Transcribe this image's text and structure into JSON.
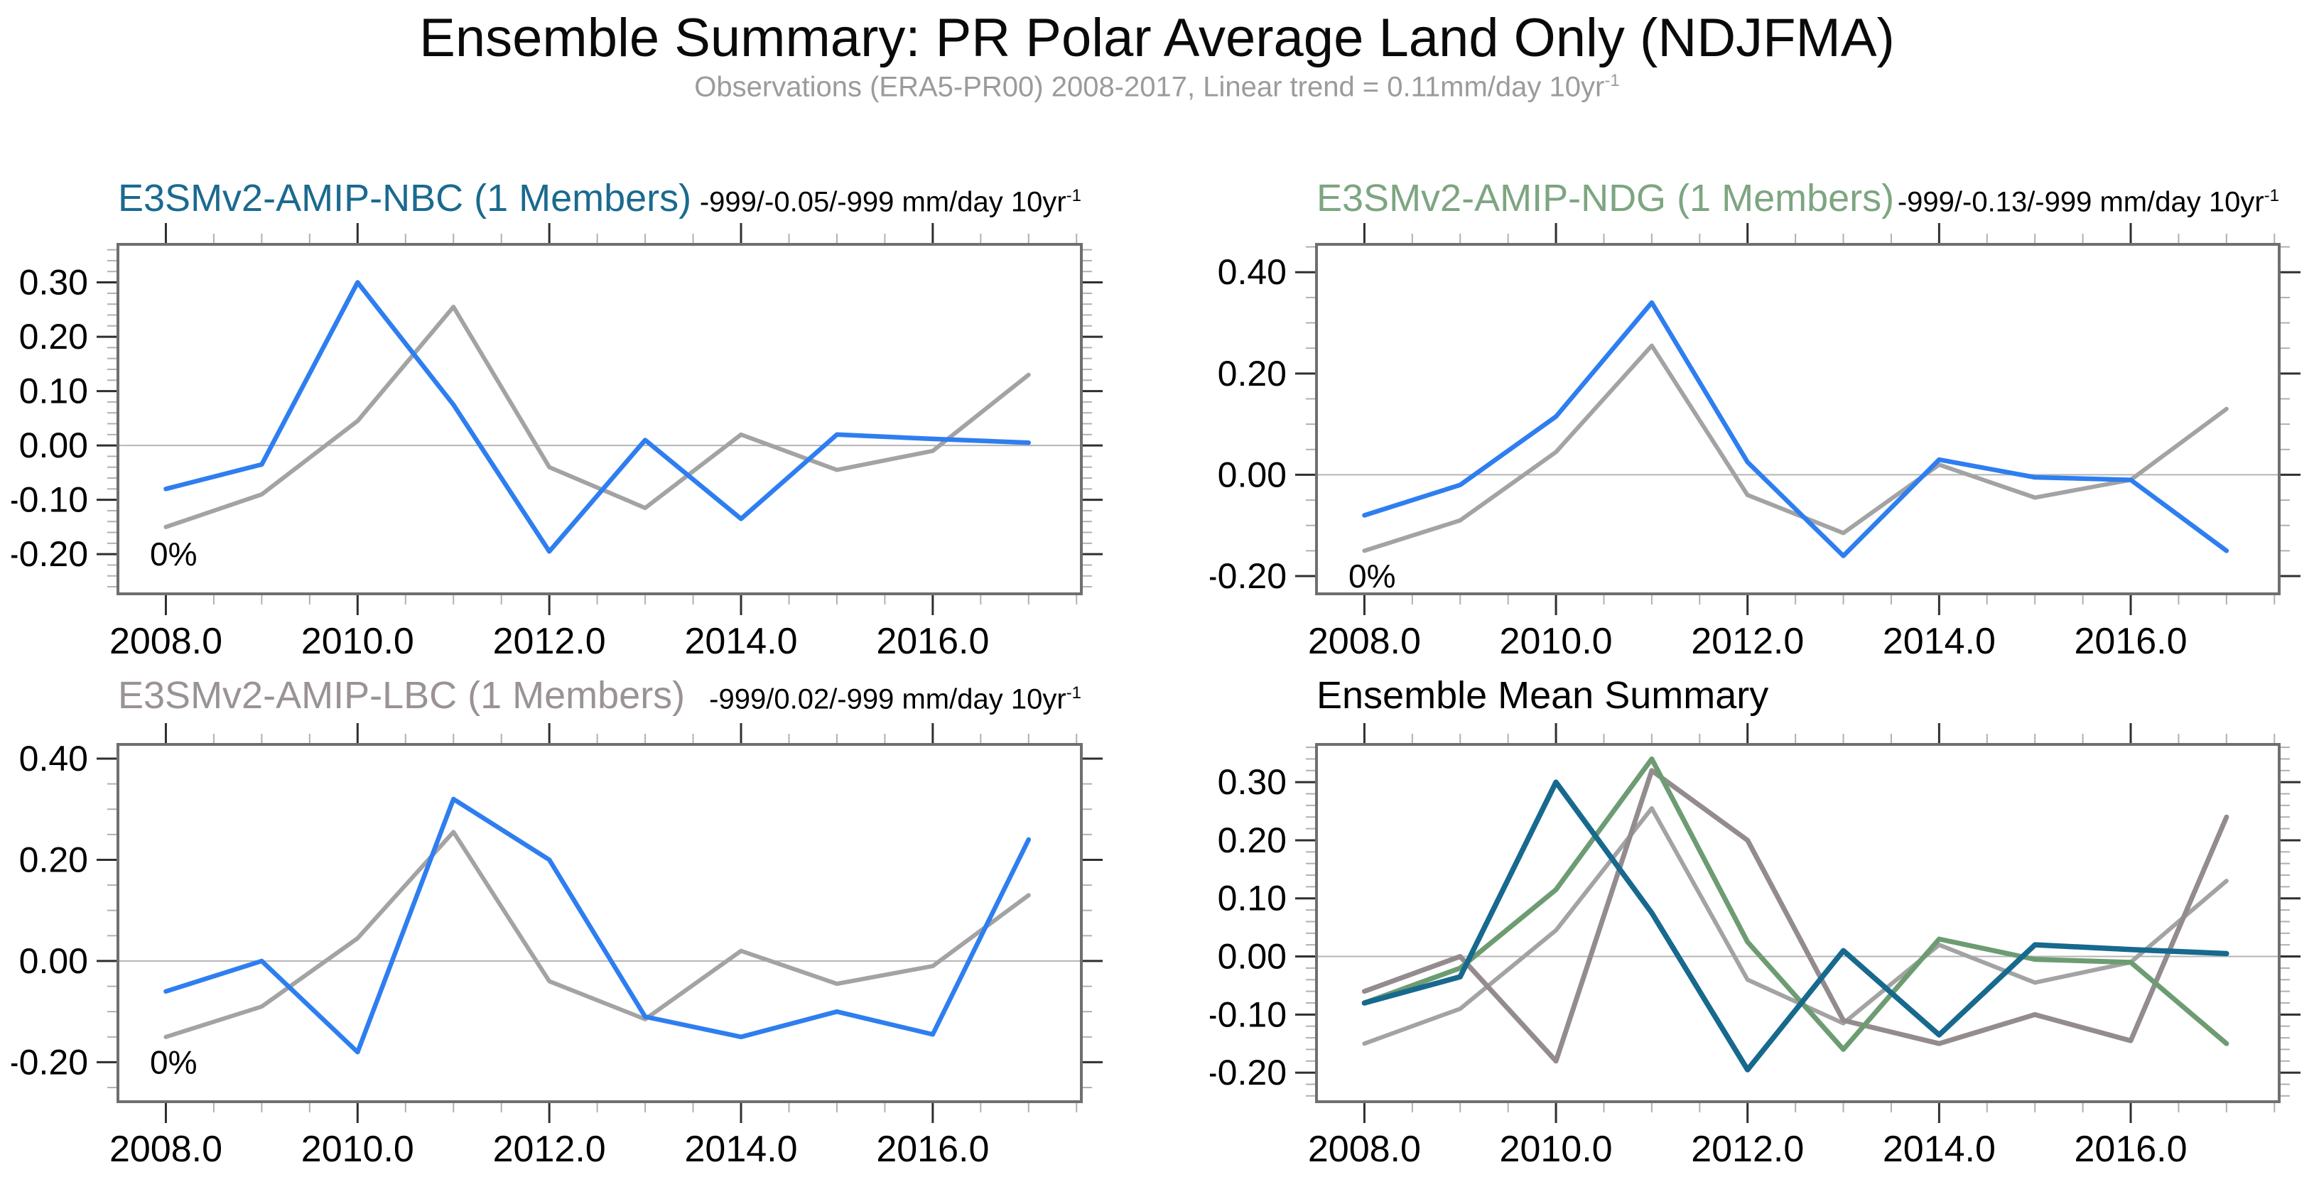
{
  "title": "Ensemble Summary: PR Polar Average Land Only (NDJFMA)",
  "subtitle": {
    "text": "Observations (ERA5-PR00) 2008-2017, Linear trend = 0.11mm/day 10yr",
    "sup": "-1"
  },
  "colors": {
    "model_blue": "#2e7ef0",
    "obs_gray": "#a3a3a3",
    "nbc_teal": "#17698e",
    "ndg_green": "#6d9c72",
    "lbc_mauve": "#948b8f",
    "frame": "#6f6f6f",
    "zero_line": "#b5b5b5",
    "major_tick": "#2f2f2f",
    "minor_tick": "#b0b0b0",
    "subtitle_gray": "#9b9b9b"
  },
  "x_years": [
    2008,
    2009,
    2010,
    2011,
    2012,
    2013,
    2014,
    2015,
    2016,
    2017
  ],
  "chart_data": [
    {
      "type": "line",
      "id": "nbc",
      "title": "E3SMv2-AMIP-NBC (1 Members)",
      "title_color": "#1a6a8f",
      "trend": "-999/-0.05/-999 mm/day 10yr",
      "trend_sup": "-1",
      "note": "0%",
      "xlim": [
        2007.5,
        2017.55
      ],
      "ylim": [
        -0.273,
        0.37
      ],
      "x_major": [
        2008,
        2010,
        2012,
        2014,
        2016
      ],
      "x_minor_step": 0.5,
      "y_major": [
        0.3,
        0.2,
        0.1,
        0.0,
        -0.1,
        -0.2
      ],
      "y_minor_step": 0.02,
      "series": [
        {
          "name": "ERA5-PR00 Observations",
          "color": "#a3a3a3",
          "width": 6,
          "values": [
            -0.15,
            -0.09,
            0.045,
            0.255,
            -0.04,
            -0.115,
            0.02,
            -0.045,
            -0.01,
            0.13
          ]
        },
        {
          "name": "E3SMv2-AMIP-NBC",
          "color": "#2e7ef0",
          "width": 6.5,
          "values": [
            -0.08,
            -0.035,
            0.3,
            0.075,
            -0.195,
            0.01,
            -0.135,
            0.02,
            0.012,
            0.005
          ]
        }
      ]
    },
    {
      "type": "line",
      "id": "ndg",
      "title": "E3SMv2-AMIP-NDG (1 Members)",
      "title_color": "#7da581",
      "trend": "-999/-0.13/-999 mm/day 10yr",
      "trend_sup": "-1",
      "note": "0%",
      "xlim": [
        2007.5,
        2017.55
      ],
      "ylim": [
        -0.235,
        0.455
      ],
      "x_major": [
        2008,
        2010,
        2012,
        2014,
        2016
      ],
      "x_minor_step": 0.5,
      "y_major": [
        0.4,
        0.2,
        0.0,
        -0.2
      ],
      "y_minor_step": 0.05,
      "series": [
        {
          "name": "ERA5-PR00 Observations",
          "color": "#a3a3a3",
          "width": 6,
          "values": [
            -0.15,
            -0.09,
            0.045,
            0.255,
            -0.04,
            -0.115,
            0.02,
            -0.045,
            -0.01,
            0.13
          ]
        },
        {
          "name": "E3SMv2-AMIP-NDG",
          "color": "#2e7ef0",
          "width": 6.5,
          "values": [
            -0.08,
            -0.02,
            0.115,
            0.34,
            0.025,
            -0.16,
            0.03,
            -0.005,
            -0.01,
            -0.15
          ]
        }
      ]
    },
    {
      "type": "line",
      "id": "lbc",
      "title": "E3SMv2-AMIP-LBC (1 Members)",
      "title_color": "#9a9296",
      "trend": "-999/0.02/-999 mm/day 10yr",
      "trend_sup": "-1",
      "note": "0%",
      "xlim": [
        2007.5,
        2017.55
      ],
      "ylim": [
        -0.278,
        0.428
      ],
      "x_major": [
        2008,
        2010,
        2012,
        2014,
        2016
      ],
      "x_minor_step": 0.5,
      "y_major": [
        0.4,
        0.2,
        0.0,
        -0.2
      ],
      "y_minor_step": 0.05,
      "series": [
        {
          "name": "ERA5-PR00 Observations",
          "color": "#a3a3a3",
          "width": 6,
          "values": [
            -0.15,
            -0.09,
            0.045,
            0.255,
            -0.04,
            -0.115,
            0.02,
            -0.045,
            -0.01,
            0.13
          ]
        },
        {
          "name": "E3SMv2-AMIP-LBC",
          "color": "#2e7ef0",
          "width": 6.5,
          "values": [
            -0.06,
            0.0,
            -0.18,
            0.32,
            0.2,
            -0.11,
            -0.15,
            -0.1,
            -0.145,
            0.24
          ]
        }
      ]
    },
    {
      "type": "line",
      "id": "summary",
      "title": "Ensemble Mean Summary",
      "title_color": "#000000",
      "trend": null,
      "trend_sup": null,
      "note": null,
      "xlim": [
        2007.5,
        2017.55
      ],
      "ylim": [
        -0.25,
        0.365
      ],
      "x_major": [
        2008,
        2010,
        2012,
        2014,
        2016
      ],
      "x_minor_step": 0.5,
      "y_major": [
        0.3,
        0.2,
        0.1,
        0.0,
        -0.1,
        -0.2
      ],
      "y_minor_step": 0.02,
      "series": [
        {
          "name": "ERA5-PR00 Observations",
          "color": "#a3a3a3",
          "width": 6,
          "values": [
            -0.15,
            -0.09,
            0.045,
            0.255,
            -0.04,
            -0.115,
            0.02,
            -0.045,
            -0.01,
            0.13
          ]
        },
        {
          "name": "E3SMv2-AMIP-LBC mean",
          "color": "#948b8f",
          "width": 7,
          "values": [
            -0.06,
            0.0,
            -0.18,
            0.32,
            0.2,
            -0.11,
            -0.15,
            -0.1,
            -0.145,
            0.24
          ]
        },
        {
          "name": "E3SMv2-AMIP-NDG mean",
          "color": "#6d9c72",
          "width": 7,
          "values": [
            -0.08,
            -0.02,
            0.115,
            0.34,
            0.025,
            -0.16,
            0.03,
            -0.005,
            -0.01,
            -0.15
          ]
        },
        {
          "name": "E3SMv2-AMIP-NBC mean",
          "color": "#17698e",
          "width": 7.5,
          "values": [
            -0.08,
            -0.035,
            0.3,
            0.075,
            -0.195,
            0.01,
            -0.135,
            0.02,
            0.012,
            0.005
          ]
        }
      ]
    }
  ]
}
